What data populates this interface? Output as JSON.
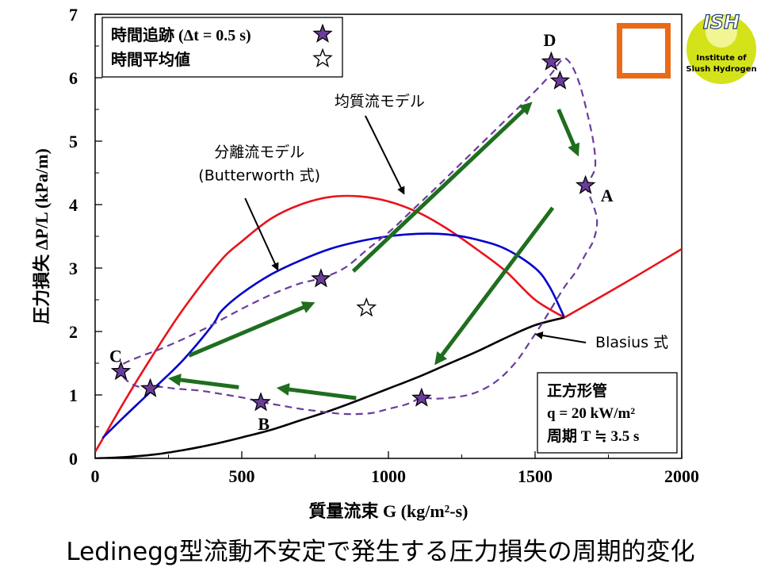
{
  "caption": "Ledinegg型流動不安定で発生する圧力損失の周期的変化",
  "logo": {
    "main": "ISH",
    "line1": "Institute of",
    "line2": "Slush Hydrogen"
  },
  "chart_data": {
    "type": "line",
    "xlabel": "質量流束 G (kg/m²-s)",
    "ylabel": "圧力損失 ΔP/L (kPa/m)",
    "xlim": [
      0,
      2000
    ],
    "ylim": [
      0,
      7
    ],
    "xticks": [
      "0",
      "500",
      "1000",
      "1500",
      "2000"
    ],
    "yticks": [
      "0",
      "1",
      "2",
      "3",
      "4",
      "5",
      "6",
      "7"
    ],
    "grid": false,
    "legend": {
      "placement": "top-left",
      "entries": [
        {
          "label": "時間追跡 (Δt = 0.5 s)",
          "marker": "filled-star"
        },
        {
          "label": "時間平均値",
          "marker": "open-star"
        }
      ]
    },
    "series": [
      {
        "name": "均質流モデル",
        "color": "#e8141c",
        "x": [
          0,
          100,
          200,
          300,
          425,
          500,
          600,
          700,
          800,
          900,
          1000,
          1100,
          1200,
          1300,
          1400,
          1500,
          1600
        ],
        "y": [
          0.1,
          0.9,
          1.65,
          2.35,
          3.1,
          3.42,
          3.78,
          4.0,
          4.12,
          4.13,
          4.05,
          3.88,
          3.62,
          3.3,
          2.95,
          2.5,
          2.22
        ]
      },
      {
        "name": "分離流モデル (Butterworth 式)",
        "color": "#0000cc",
        "x": [
          25,
          100,
          200,
          300,
          400,
          430,
          500,
          600,
          700,
          800,
          900,
          1000,
          1100,
          1200,
          1300,
          1400,
          1500,
          1550,
          1600
        ],
        "y": [
          0.32,
          0.66,
          1.1,
          1.55,
          2.1,
          2.32,
          2.6,
          2.9,
          3.12,
          3.3,
          3.42,
          3.5,
          3.54,
          3.53,
          3.45,
          3.3,
          3.0,
          2.7,
          2.22
        ]
      },
      {
        "name": "Blasius 式",
        "color": "#000000",
        "x": [
          0,
          100,
          200,
          300,
          400,
          500,
          600,
          700,
          800,
          900,
          1000,
          1100,
          1200,
          1300,
          1400,
          1500,
          1600
        ],
        "y": [
          0.0,
          0.02,
          0.06,
          0.13,
          0.22,
          0.33,
          0.45,
          0.6,
          0.75,
          0.92,
          1.1,
          1.28,
          1.48,
          1.68,
          1.9,
          2.1,
          2.22
        ]
      },
      {
        "name": "Blasius 式 (延長)",
        "color": "#e8141c",
        "x": [
          1600,
          1800,
          2000
        ],
        "y": [
          2.22,
          2.75,
          3.3
        ]
      }
    ],
    "trajectory": {
      "color": "#6a3d9a",
      "x": [
        1672,
        1710,
        1700,
        1670,
        1640,
        1600,
        1560,
        1520,
        1480,
        1440,
        1390,
        1340,
        1280,
        1218,
        1160,
        1113,
        1060,
        1000,
        950,
        900,
        850,
        800,
        750,
        700,
        650,
        600,
        565,
        530,
        490,
        450,
        410,
        370,
        330,
        300,
        270,
        240,
        210,
        185,
        160,
        135,
        110,
        90,
        80,
        85,
        100,
        150,
        220,
        300,
        380,
        460,
        540,
        620,
        700,
        770,
        850,
        930,
        1010,
        1090,
        1170,
        1250,
        1330,
        1410,
        1490,
        1553,
        1585,
        1605,
        1630,
        1655,
        1680,
        1700,
        1705,
        1690,
        1672
      ],
      "y": [
        4.3,
        3.8,
        3.45,
        3.2,
        2.95,
        2.7,
        2.4,
        2.1,
        1.82,
        1.55,
        1.3,
        1.13,
        1.01,
        0.96,
        0.94,
        0.95,
        0.85,
        0.78,
        0.72,
        0.7,
        0.7,
        0.72,
        0.75,
        0.78,
        0.82,
        0.86,
        0.89,
        0.93,
        0.97,
        1.0,
        1.03,
        1.06,
        1.08,
        1.09,
        1.1,
        1.12,
        1.13,
        1.13,
        1.12,
        1.15,
        1.22,
        1.32,
        1.37,
        1.44,
        1.5,
        1.6,
        1.72,
        1.88,
        2.06,
        2.26,
        2.45,
        2.62,
        2.76,
        2.84,
        3.0,
        3.3,
        3.6,
        3.95,
        4.3,
        4.66,
        5.02,
        5.38,
        5.74,
        6.05,
        6.25,
        6.3,
        6.15,
        5.85,
        5.4,
        4.95,
        4.6,
        4.42,
        4.3
      ]
    },
    "time_points": {
      "x": [
        1555,
        1585,
        1672,
        1113,
        565,
        188,
        88,
        770
      ],
      "y": [
        6.25,
        5.95,
        4.3,
        0.95,
        0.88,
        1.1,
        1.37,
        2.83
      ]
    },
    "time_average": {
      "x": 925,
      "y": 2.37
    },
    "point_labels": [
      {
        "text": "D",
        "x": 1550,
        "y": 6.6
      },
      {
        "text": "A",
        "x": 1745,
        "y": 4.15
      },
      {
        "text": "B",
        "x": 575,
        "y": 0.55
      },
      {
        "text": "C",
        "x": 70,
        "y": 1.62
      }
    ],
    "arrows": [
      {
        "from": [
          880,
          2.95
        ],
        "to": [
          1475,
          5.55
        ]
      },
      {
        "from": [
          1580,
          5.5
        ],
        "to": [
          1640,
          4.85
        ]
      },
      {
        "from": [
          1560,
          3.95
        ],
        "to": [
          1170,
          1.55
        ]
      },
      {
        "from": [
          890,
          0.95
        ],
        "to": [
          640,
          1.1
        ]
      },
      {
        "from": [
          490,
          1.12
        ],
        "to": [
          270,
          1.25
        ]
      },
      {
        "from": [
          320,
          1.62
        ],
        "to": [
          730,
          2.42
        ]
      }
    ],
    "annotations": [
      {
        "text": "均質流モデル",
        "x": 970,
        "y": 5.55,
        "target": [
          1050,
          4.2
        ]
      },
      {
        "text": "分離流モデル",
        "x": 560,
        "y": 4.75,
        "target": [
          620,
          3.0
        ]
      },
      {
        "text": "(Butterworth 式)",
        "x": 560,
        "y": 4.38
      },
      {
        "text": "Blasius 式",
        "x": 1830,
        "y": 1.75,
        "target": [
          1510,
          1.95
        ]
      }
    ],
    "conditions": {
      "line1": "正方形管",
      "line2": "q = 20 kW/m²",
      "line3": "周期 T ≒ 3.5 s"
    }
  }
}
